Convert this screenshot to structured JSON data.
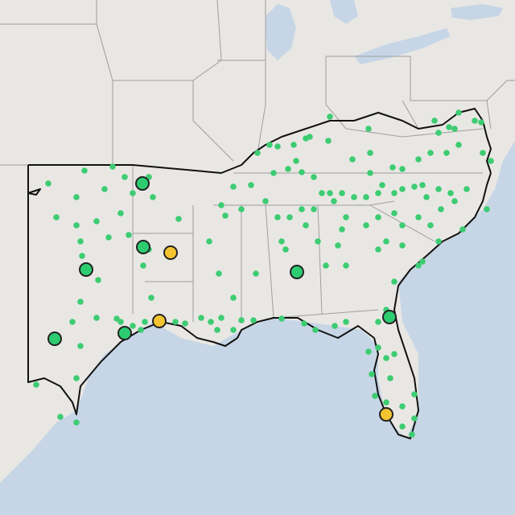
{
  "map": {
    "colors": {
      "land": "#e9e7e4",
      "water": "#c7d6e6",
      "state_border": "#9e9e9e",
      "region_outline": "#111111",
      "small_dot": "#3dcc72",
      "marker_green": "#2ecc71",
      "marker_yellow": "#f4c430",
      "marker_stroke": "#222222"
    },
    "small_dot_color_name": "green",
    "large_marker_colors": [
      "green",
      "yellow"
    ]
  }
}
